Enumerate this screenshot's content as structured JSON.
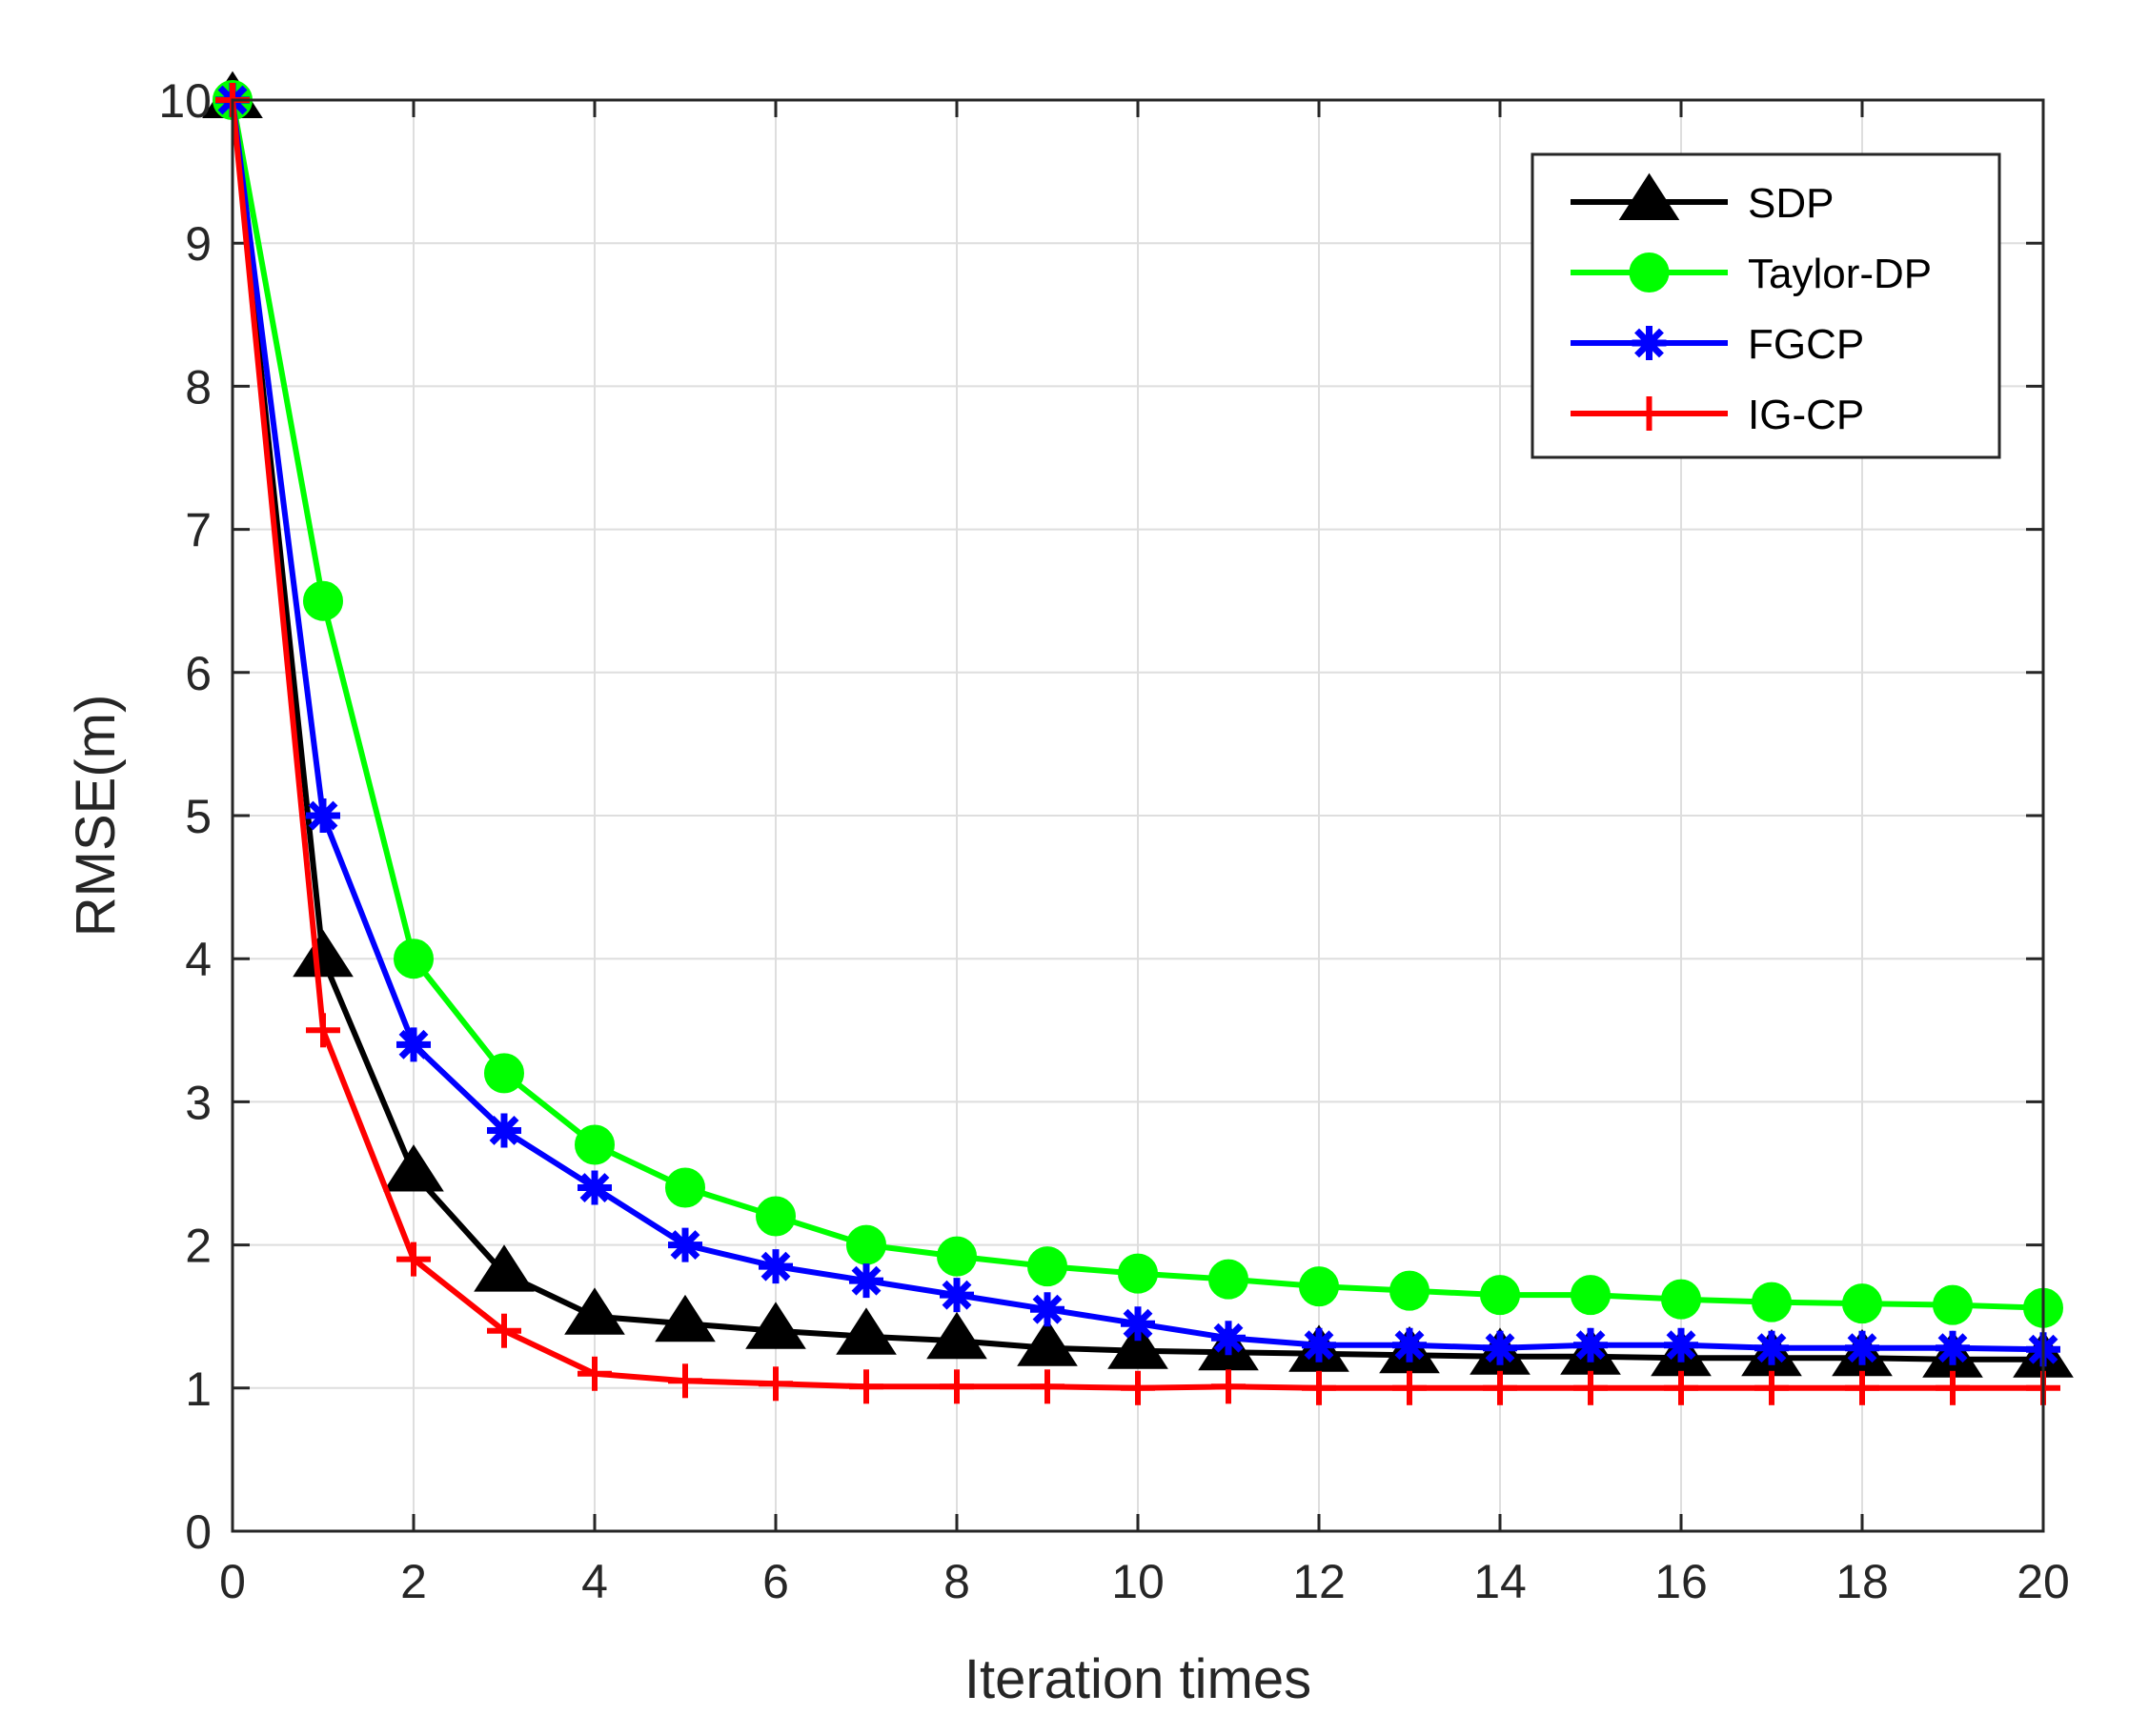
{
  "chart_data": {
    "type": "line",
    "title": "",
    "xlabel": "Iteration times",
    "ylabel": "RMSE(m)",
    "xlim": [
      0,
      20
    ],
    "ylim": [
      0,
      10
    ],
    "xticks": [
      0,
      2,
      4,
      6,
      8,
      10,
      12,
      14,
      16,
      18,
      20
    ],
    "yticks": [
      0,
      1,
      2,
      3,
      4,
      5,
      6,
      7,
      8,
      9,
      10
    ],
    "xtick_labels": [
      "0",
      "2",
      "4",
      "6",
      "8",
      "10",
      "12",
      "14",
      "16",
      "18",
      "20"
    ],
    "ytick_labels": [
      "0",
      "1",
      "2",
      "3",
      "4",
      "5",
      "6",
      "7",
      "8",
      "9",
      "10"
    ],
    "grid": true,
    "legend_position": "top-right",
    "x": [
      0,
      1,
      2,
      3,
      4,
      5,
      6,
      7,
      8,
      9,
      10,
      11,
      12,
      13,
      14,
      15,
      16,
      17,
      18,
      19,
      20
    ],
    "series": [
      {
        "name": "SDP",
        "color": "#000000",
        "marker": "triangle",
        "values": [
          10,
          4.0,
          2.5,
          1.8,
          1.5,
          1.45,
          1.4,
          1.36,
          1.33,
          1.28,
          1.26,
          1.25,
          1.24,
          1.23,
          1.22,
          1.22,
          1.21,
          1.21,
          1.21,
          1.2,
          1.2
        ]
      },
      {
        "name": "Taylor-DP",
        "color": "#00ff00",
        "marker": "circle",
        "values": [
          10,
          6.5,
          4.0,
          3.2,
          2.7,
          2.4,
          2.2,
          2.0,
          1.92,
          1.85,
          1.8,
          1.76,
          1.71,
          1.68,
          1.65,
          1.65,
          1.62,
          1.6,
          1.59,
          1.58,
          1.56
        ]
      },
      {
        "name": "FGCP",
        "color": "#0000ff",
        "marker": "asterisk",
        "values": [
          10,
          5.0,
          3.4,
          2.8,
          2.4,
          2.0,
          1.85,
          1.75,
          1.65,
          1.55,
          1.45,
          1.35,
          1.3,
          1.3,
          1.28,
          1.3,
          1.3,
          1.28,
          1.28,
          1.28,
          1.27
        ]
      },
      {
        "name": "IG-CP",
        "color": "#ff0000",
        "marker": "plus",
        "values": [
          10,
          3.5,
          1.9,
          1.4,
          1.1,
          1.05,
          1.03,
          1.01,
          1.01,
          1.01,
          1.0,
          1.01,
          1.0,
          1.0,
          1.0,
          1.0,
          1.0,
          1.0,
          1.0,
          1.0,
          1.0
        ]
      }
    ]
  }
}
